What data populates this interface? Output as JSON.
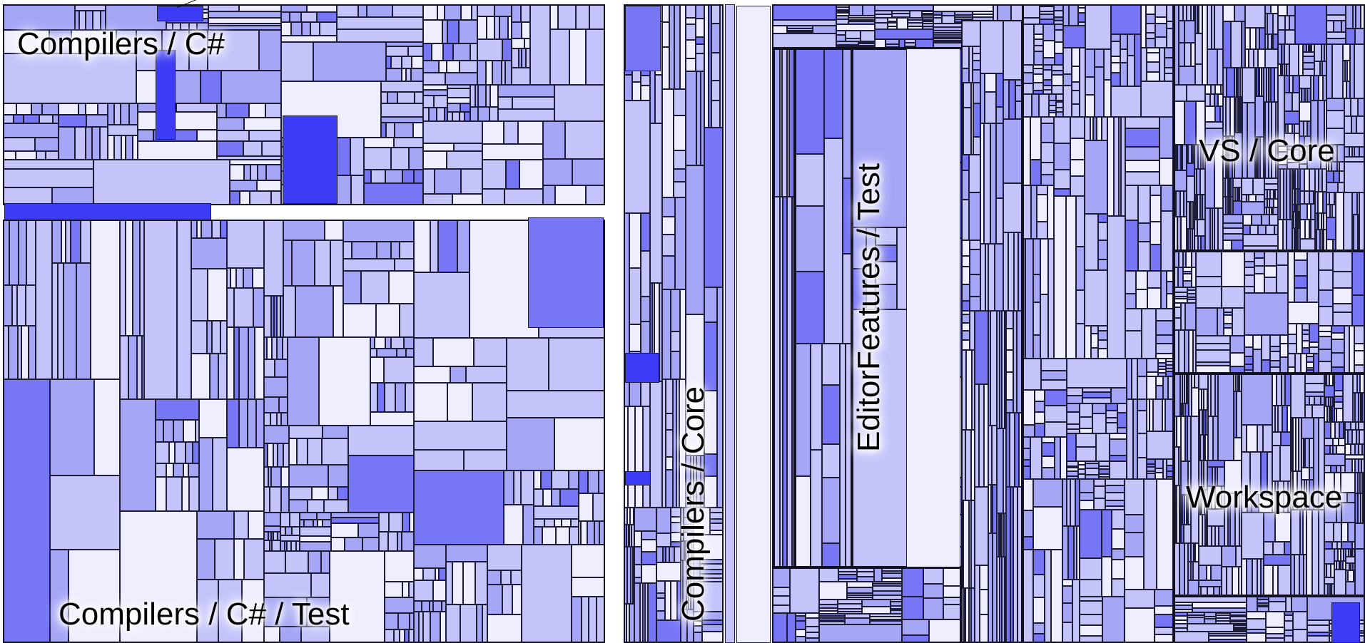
{
  "view": {
    "title": ""
  },
  "regions": [
    {
      "id": "compilers-csharp",
      "label": "Compilers / C#"
    },
    {
      "id": "compilers-csharp-test",
      "label": "Compilers / C# / Test"
    },
    {
      "id": "compilers-core",
      "label": "Compilers / Core"
    },
    {
      "id": "editorfeatures-test",
      "label": "EditorFeatures / Test"
    },
    {
      "id": "vs-core",
      "label": "VS / Core"
    },
    {
      "id": "workspace",
      "label": "Workspace"
    }
  ],
  "colors": {
    "lightest": "#eeeeff",
    "light": "#c4c4fb",
    "medium": "#a6a6f7",
    "strong": "#7777f5",
    "saturated": "#3c3cf6",
    "border": "#1d1d3a"
  }
}
